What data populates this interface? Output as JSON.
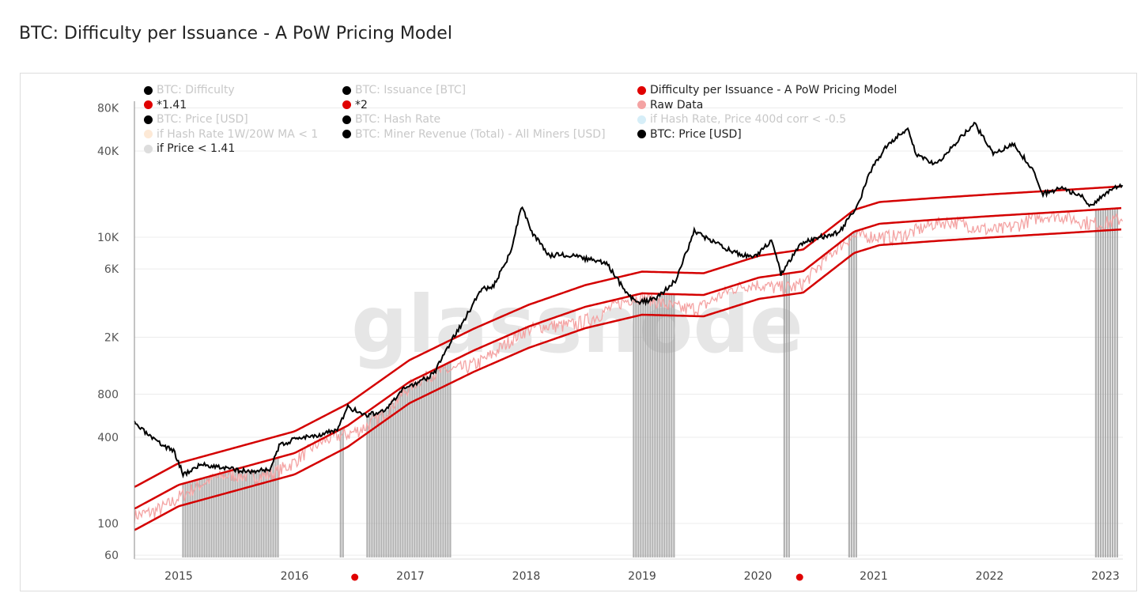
{
  "title": "BTC: Difficulty per Issuance - A PoW Pricing Model",
  "watermark": "glassnode",
  "legend": [
    {
      "label": "BTC: Difficulty",
      "color": "#000000",
      "active": false
    },
    {
      "label": "BTC: Issuance [BTC]",
      "color": "#000000",
      "active": false
    },
    {
      "label": "Difficulty per Issuance - A PoW Pricing Model",
      "color": "#e00000",
      "active": true
    },
    {
      "label": "*1.41",
      "color": "#e00000",
      "active": true
    },
    {
      "label": "*2",
      "color": "#e00000",
      "active": true
    },
    {
      "label": "Raw Data",
      "color": "#f4a3a3",
      "active": true
    },
    {
      "label": "BTC: Price [USD]",
      "color": "#000000",
      "active": false
    },
    {
      "label": "BTC: Hash Rate",
      "color": "#000000",
      "active": false
    },
    {
      "label": "if Hash Rate, Price 400d corr < -0.5",
      "color": "#d6eef8",
      "active": false
    },
    {
      "label": "if Hash Rate 1W/20W MA < 1",
      "color": "#fde9d6",
      "active": false
    },
    {
      "label": "BTC: Miner Revenue (Total) - All Miners [USD]",
      "color": "#000000",
      "active": false
    },
    {
      "label": "BTC: Price [USD]",
      "color": "#000000",
      "active": true
    },
    {
      "label": "if Price < 1.41",
      "color": "#dddddd",
      "active": true
    }
  ],
  "chart_data": {
    "type": "line",
    "title": "BTC: Difficulty per Issuance - A PoW Pricing Model",
    "y_scale": "log",
    "ylim": [
      55,
      90000
    ],
    "xlim": [
      2014.62,
      2023.16
    ],
    "y_ticks": [
      "80K",
      "40K",
      "10K",
      "6K",
      "2K",
      "800",
      "400",
      "100",
      "60"
    ],
    "y_tick_values": [
      80000,
      40000,
      10000,
      6000,
      2000,
      800,
      400,
      100,
      60
    ],
    "x_ticks": [
      "2015",
      "2016",
      "2017",
      "2018",
      "2019",
      "2020",
      "2021",
      "2022",
      "2023"
    ],
    "grid": true,
    "halving_markers": [
      2016.52,
      2020.36
    ],
    "model": {
      "name": "Difficulty per Issuance - A PoW Pricing Model",
      "x": [
        2014.62,
        2015.0,
        2016.0,
        2016.46,
        2016.99,
        2017.55,
        2018.02,
        2018.51,
        2019.0,
        2019.53,
        2020.01,
        2020.39,
        2020.83,
        2021.05,
        2021.51,
        2022.04,
        2022.6,
        2023.15
      ],
      "y": [
        90,
        132,
        220,
        343,
        691,
        1150,
        1685,
        2315,
        2875,
        2800,
        3710,
        4100,
        7760,
        8810,
        9380,
        10000,
        10640,
        11350
      ]
    },
    "band_multipliers": [
      {
        "name": "*1.41",
        "factor": 1.41
      },
      {
        "name": "*2",
        "factor": 2
      }
    ],
    "raw_data": {
      "name": "Raw Data",
      "relative_to_model_range": [
        0.9,
        1.45
      ]
    },
    "price": {
      "name": "BTC: Price [USD]",
      "x": [
        2014.62,
        2014.79,
        2014.96,
        2015.04,
        2015.2,
        2015.45,
        2015.62,
        2015.79,
        2015.87,
        2016.04,
        2016.2,
        2016.37,
        2016.46,
        2016.62,
        2016.79,
        2016.96,
        2017.04,
        2017.2,
        2017.37,
        2017.45,
        2017.62,
        2017.7,
        2017.87,
        2017.96,
        2018.04,
        2018.12,
        2018.2,
        2018.37,
        2018.54,
        2018.7,
        2018.87,
        2018.96,
        2019.12,
        2019.29,
        2019.45,
        2019.54,
        2019.7,
        2019.87,
        2019.96,
        2020.12,
        2020.2,
        2020.37,
        2020.54,
        2020.7,
        2020.87,
        2020.96,
        2021.12,
        2021.29,
        2021.37,
        2021.54,
        2021.7,
        2021.87,
        2022.04,
        2022.2,
        2022.37,
        2022.45,
        2022.62,
        2022.79,
        2022.87,
        2023.04,
        2023.15
      ],
      "y": [
        500,
        380,
        320,
        220,
        260,
        240,
        230,
        240,
        350,
        400,
        415,
        450,
        650,
        570,
        620,
        900,
        950,
        1100,
        2000,
        2500,
        4500,
        4300,
        8000,
        17000,
        11000,
        9000,
        7500,
        7500,
        7000,
        6500,
        4000,
        3500,
        3700,
        5000,
        11000,
        10000,
        8500,
        7500,
        7200,
        9500,
        5500,
        9000,
        10000,
        10800,
        17000,
        28000,
        45000,
        57000,
        37000,
        32000,
        45000,
        62000,
        38000,
        45000,
        30000,
        20000,
        22000,
        19500,
        16500,
        21000,
        23500
      ]
    },
    "shaded_if_price_below_1_41": [
      [
        2015.03,
        2015.85
      ],
      [
        2016.39,
        2016.42
      ],
      [
        2016.62,
        2017.35
      ],
      [
        2018.92,
        2019.28
      ],
      [
        2020.22,
        2020.27
      ],
      [
        2020.78,
        2020.85
      ],
      [
        2022.91,
        2023.1
      ]
    ]
  }
}
